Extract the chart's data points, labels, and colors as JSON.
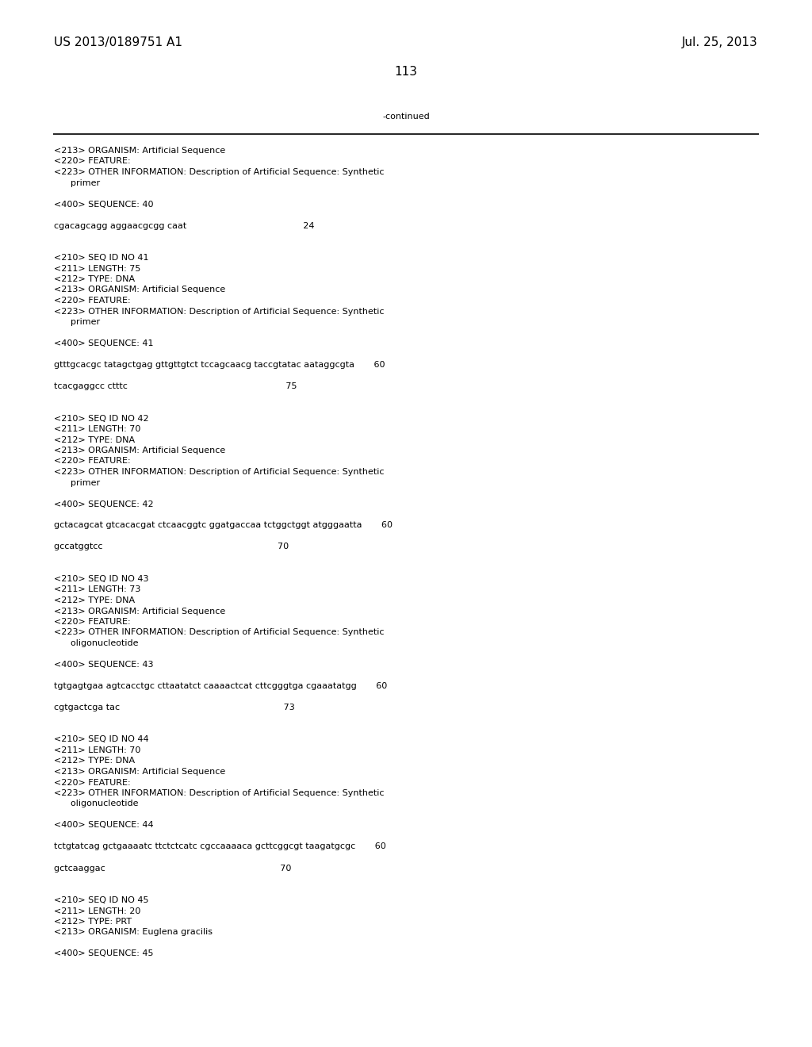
{
  "header_left": "US 2013/0189751 A1",
  "header_right": "Jul. 25, 2013",
  "page_number": "113",
  "continued_text": "-continued",
  "background_color": "#ffffff",
  "text_color": "#000000",
  "font_size_header": 11,
  "font_size_page_num": 11,
  "font_size_body": 8.0,
  "font_size_mono": 8.0,
  "lines": [
    "<213> ORGANISM: Artificial Sequence",
    "<220> FEATURE:",
    "<223> OTHER INFORMATION: Description of Artificial Sequence: Synthetic",
    "      primer",
    "",
    "<400> SEQUENCE: 40",
    "",
    "cgacagcagg aggaacgcgg caat                                          24",
    "",
    "",
    "<210> SEQ ID NO 41",
    "<211> LENGTH: 75",
    "<212> TYPE: DNA",
    "<213> ORGANISM: Artificial Sequence",
    "<220> FEATURE:",
    "<223> OTHER INFORMATION: Description of Artificial Sequence: Synthetic",
    "      primer",
    "",
    "<400> SEQUENCE: 41",
    "",
    "gtttgcacgc tatagctgag gttgttgtct tccagcaacg taccgtatac aataggcgta       60",
    "",
    "tcacgaggcc ctttc                                                         75",
    "",
    "",
    "<210> SEQ ID NO 42",
    "<211> LENGTH: 70",
    "<212> TYPE: DNA",
    "<213> ORGANISM: Artificial Sequence",
    "<220> FEATURE:",
    "<223> OTHER INFORMATION: Description of Artificial Sequence: Synthetic",
    "      primer",
    "",
    "<400> SEQUENCE: 42",
    "",
    "gctacagcat gtcacacgat ctcaacggtc ggatgaccaa tctggctggt atgggaatta       60",
    "",
    "gccatggtcc                                                               70",
    "",
    "",
    "<210> SEQ ID NO 43",
    "<211> LENGTH: 73",
    "<212> TYPE: DNA",
    "<213> ORGANISM: Artificial Sequence",
    "<220> FEATURE:",
    "<223> OTHER INFORMATION: Description of Artificial Sequence: Synthetic",
    "      oligonucleotide",
    "",
    "<400> SEQUENCE: 43",
    "",
    "tgtgagtgaa agtcacctgc cttaatatct caaaactcat cttcgggtga cgaaatatgg       60",
    "",
    "cgtgactcga tac                                                           73",
    "",
    "",
    "<210> SEQ ID NO 44",
    "<211> LENGTH: 70",
    "<212> TYPE: DNA",
    "<213> ORGANISM: Artificial Sequence",
    "<220> FEATURE:",
    "<223> OTHER INFORMATION: Description of Artificial Sequence: Synthetic",
    "      oligonucleotide",
    "",
    "<400> SEQUENCE: 44",
    "",
    "tctgtatcag gctgaaaatc ttctctcatc cgccaaaaca gcttcggcgt taagatgcgc       60",
    "",
    "gctcaaggac                                                               70",
    "",
    "",
    "<210> SEQ ID NO 45",
    "<211> LENGTH: 20",
    "<212> TYPE: PRT",
    "<213> ORGANISM: Euglena gracilis",
    "",
    "<400> SEQUENCE: 45"
  ]
}
